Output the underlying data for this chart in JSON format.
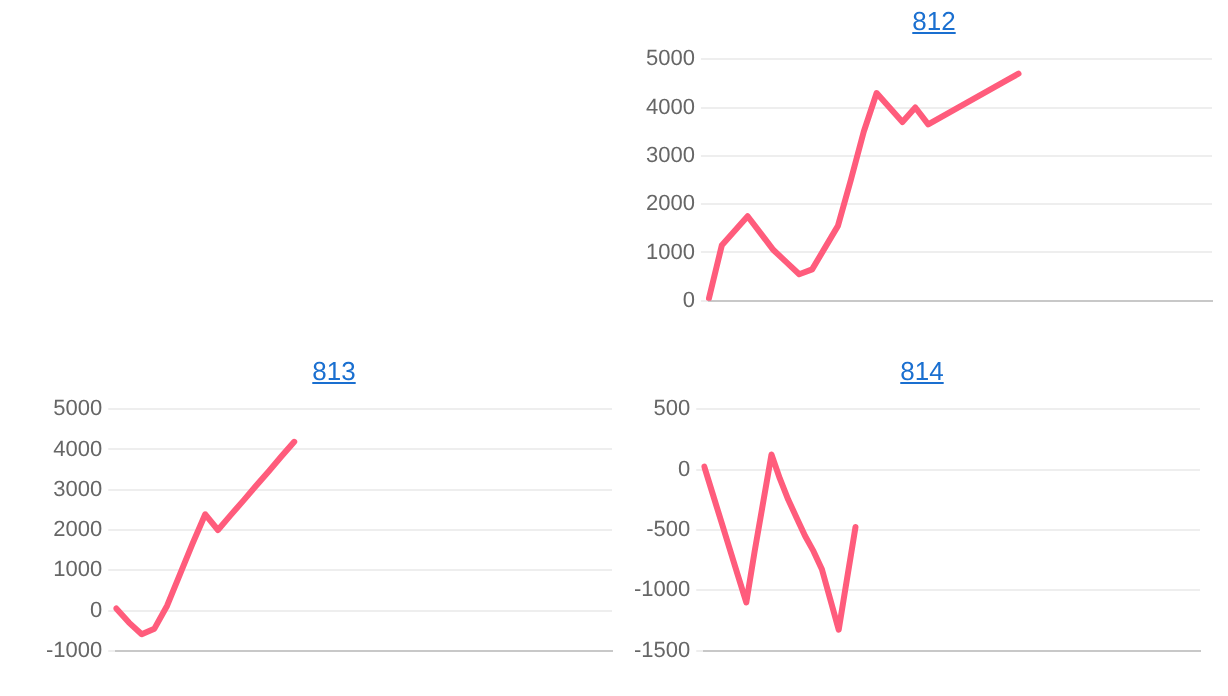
{
  "chart_data": [
    {
      "type": "line",
      "title": "812",
      "categories": [
        null,
        null,
        null,
        null,
        null,
        null,
        null,
        null,
        null,
        null,
        null,
        null,
        null,
        null,
        null,
        null,
        null,
        null,
        null,
        null,
        null,
        null,
        null,
        null,
        null,
        null,
        null,
        null,
        null,
        null,
        null,
        null,
        null,
        null,
        null,
        null,
        null,
        null,
        null,
        null
      ],
      "values": [
        50,
        1150,
        1450,
        1750,
        1400,
        1050,
        800,
        550,
        650,
        1100,
        1550,
        2500,
        3500,
        4300,
        4000,
        3700,
        4000,
        3650,
        3800,
        3950,
        4100,
        4250,
        4400,
        4550,
        4700,
        null,
        null,
        null,
        null,
        null,
        null,
        null,
        null,
        null,
        null,
        null,
        null,
        null,
        null,
        null
      ],
      "color": "#ff5c7c",
      "ylim": [
        0,
        5000
      ],
      "yticks": [
        0,
        1000,
        2000,
        3000,
        4000,
        5000
      ],
      "grid": "y",
      "tick_labels": "y",
      "marker": "none",
      "line_style": "solid"
    },
    {
      "type": "line",
      "title": "813",
      "categories": [
        null,
        null,
        null,
        null,
        null,
        null,
        null,
        null,
        null,
        null,
        null,
        null,
        null,
        null,
        null,
        null,
        null,
        null,
        null,
        null,
        null,
        null,
        null,
        null,
        null,
        null,
        null,
        null,
        null,
        null,
        null,
        null,
        null,
        null,
        null,
        null,
        null,
        null,
        null,
        null
      ],
      "values": [
        50,
        -300,
        -590,
        -450,
        120,
        890,
        1660,
        2390,
        2000,
        2370,
        2730,
        3100,
        3460,
        3830,
        4190,
        null,
        null,
        null,
        null,
        null,
        null,
        null,
        null,
        null,
        null,
        null,
        null,
        null,
        null,
        null,
        null,
        null,
        null,
        null,
        null,
        null,
        null,
        null,
        null,
        null
      ],
      "color": "#ff5c7c",
      "ylim": [
        -1000,
        5000
      ],
      "yticks": [
        -1000,
        0,
        1000,
        2000,
        3000,
        4000,
        5000
      ],
      "grid": "y",
      "tick_labels": "y",
      "marker": "none",
      "line_style": "solid"
    },
    {
      "type": "line",
      "title": "814",
      "categories": [
        null,
        null,
        null,
        null,
        null,
        null,
        null,
        null,
        null,
        null,
        null,
        null,
        null,
        null,
        null,
        null,
        null,
        null,
        null,
        null,
        null,
        null,
        null,
        null,
        null,
        null,
        null,
        null,
        null,
        null,
        null,
        null,
        null,
        null,
        null,
        null,
        null,
        null,
        null,
        null,
        null,
        null,
        null,
        null,
        null,
        null,
        null,
        null,
        null,
        null,
        null,
        null,
        null,
        null,
        null,
        null,
        null,
        null,
        null,
        null
      ],
      "values": [
        25,
        -200,
        -425,
        -650,
        -875,
        -1100,
        -675,
        -275,
        125,
        -75,
        -250,
        -400,
        -550,
        -675,
        -825,
        -1075,
        -1325,
        -900,
        -475,
        null,
        null,
        null,
        null,
        null,
        null,
        null,
        null,
        null,
        null,
        null,
        null,
        null,
        null,
        null,
        null,
        null,
        null,
        null,
        null,
        null,
        null,
        null,
        null,
        null,
        null,
        null,
        null,
        null,
        null,
        null,
        null,
        null,
        null,
        null,
        null,
        null,
        null,
        null,
        null,
        null
      ],
      "color": "#ff5c7c",
      "ylim": [
        -1500,
        500
      ],
      "yticks": [
        -1500,
        -1000,
        -500,
        0,
        500
      ],
      "grid": "y",
      "tick_labels": "y",
      "marker": "none",
      "line_style": "solid"
    }
  ]
}
